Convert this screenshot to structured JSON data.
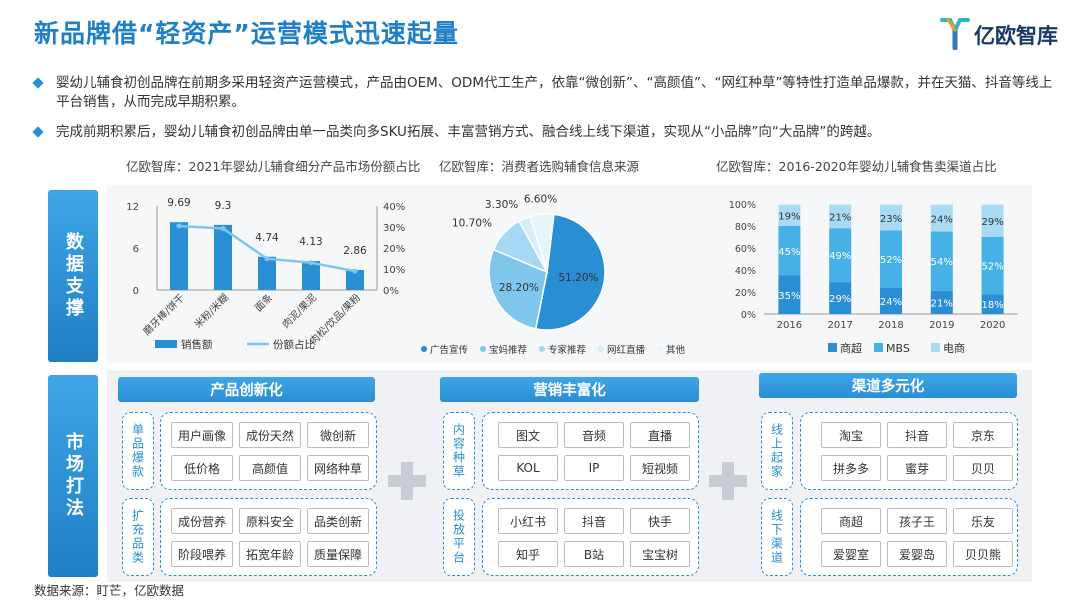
{
  "header": {
    "title": "新品牌借“轻资产”运营模式迅速起量",
    "logo_text": "亿欧智库"
  },
  "bullets": [
    "婴幼儿辅食初创品牌在前期多采用轻资产运营模式，产品由OEM、ODM代工生产，依靠“微创新”、“高颜值”、“网红种草”等特性打造单品爆款，并在天猫、抖音等线上平台销售，从而完成早期积累。",
    "完成前期积累后，婴幼儿辅食初创品牌由单一品类向多SKU拓展、丰富营销方式、融合线上线下渠道，实现从“小品牌”向“大品牌”的跨越。"
  ],
  "side_labels": {
    "data_support": "数据支撑",
    "market_play": "市场打法"
  },
  "colors": {
    "primary": "#2a8ed4",
    "light": "#7fc6ec",
    "pale": "#c8e6f6",
    "title": "#1f80c7"
  },
  "chart_data": [
    {
      "type": "bar",
      "title": "亿欧智库：2021年婴幼儿辅食细分产品市场份额占比",
      "categories": [
        "磨牙棒/饼干",
        "米粉/米糊",
        "面条",
        "肉泥/果泥",
        "肉松/饮品/果粉"
      ],
      "series": [
        {
          "name": "销售额",
          "kind": "bar",
          "axis": "left",
          "values": [
            9.69,
            9.3,
            4.74,
            4.13,
            2.86
          ]
        },
        {
          "name": "份额占比",
          "kind": "line",
          "axis": "right",
          "values": [
            30.5,
            29.3,
            14.9,
            13.0,
            9.0
          ]
        }
      ],
      "data_labels": [
        "9.69",
        "9.3",
        "4.74",
        "4.13",
        "2.86"
      ],
      "y_left": {
        "ticks": [
          "0",
          "6",
          "12"
        ],
        "ylim": [
          0,
          12
        ]
      },
      "y_right": {
        "ticks": [
          "0%",
          "10%",
          "20%",
          "30%",
          "40%"
        ],
        "ylim": [
          0,
          40
        ]
      },
      "legend": "bottom"
    },
    {
      "type": "pie",
      "title": "亿欧智库：消费者选购辅食信息来源",
      "slices": [
        {
          "name": "广告宣传",
          "value": 51.2,
          "label": "51.20%"
        },
        {
          "name": "宝妈推荐",
          "value": 28.2,
          "label": "28.20%"
        },
        {
          "name": "专家推荐",
          "value": 10.7,
          "label": "10.70%"
        },
        {
          "name": "网红直播",
          "value": 3.3,
          "label": "3.30%"
        },
        {
          "name": "其他",
          "value": 6.6,
          "label": "6.60%"
        }
      ],
      "legend": "bottom"
    },
    {
      "type": "bar",
      "stacked": true,
      "title": "亿欧智库：2016-2020年婴幼儿辅食售卖渠道占比",
      "categories": [
        "2016",
        "2017",
        "2018",
        "2019",
        "2020"
      ],
      "series": [
        {
          "name": "商超",
          "values": [
            35,
            29,
            24,
            21,
            18
          ],
          "labels": [
            "35%",
            "29%",
            "24%",
            "21%",
            "18%"
          ]
        },
        {
          "name": "MBS",
          "values": [
            45,
            49,
            52,
            54,
            52
          ],
          "labels": [
            "45%",
            "49%",
            "52%",
            "54%",
            "52%"
          ]
        },
        {
          "name": "电商",
          "values": [
            19,
            21,
            23,
            24,
            29
          ],
          "labels": [
            "19%",
            "21%",
            "23%",
            "24%",
            "29%"
          ]
        }
      ],
      "y": {
        "ticks": [
          "0%",
          "20%",
          "40%",
          "60%",
          "80%",
          "100%"
        ],
        "ylim": [
          0,
          100
        ]
      },
      "legend": "bottom"
    }
  ],
  "strategy": {
    "product": {
      "heading": "产品创新化",
      "groups": [
        {
          "label": "单品爆款",
          "tags": [
            "用户画像",
            "成份天然",
            "微创新",
            "低价格",
            "高颜值",
            "网络种草"
          ]
        },
        {
          "label": "扩充品类",
          "tags": [
            "成份营养",
            "原料安全",
            "品类创新",
            "阶段喂养",
            "拓宽年龄",
            "质量保障"
          ]
        }
      ]
    },
    "marketing": {
      "heading": "营销丰富化",
      "groups": [
        {
          "label": "内容种草",
          "tags": [
            "图文",
            "音频",
            "直播",
            "KOL",
            "IP",
            "短视频"
          ]
        },
        {
          "label": "投放平台",
          "tags": [
            "小红书",
            "抖音",
            "快手",
            "知乎",
            "B站",
            "宝宝树"
          ]
        }
      ]
    },
    "channel": {
      "heading": "渠道多元化",
      "groups": [
        {
          "label": "线上起家",
          "tags": [
            "淘宝",
            "抖音",
            "京东",
            "拼多多",
            "蜜芽",
            "贝贝"
          ]
        },
        {
          "label": "线下渠道",
          "tags": [
            "商超",
            "孩子王",
            "乐友",
            "爱婴室",
            "爱婴岛",
            "贝贝熊"
          ]
        }
      ]
    }
  },
  "source": "数据来源：盯芒，亿欧数据"
}
